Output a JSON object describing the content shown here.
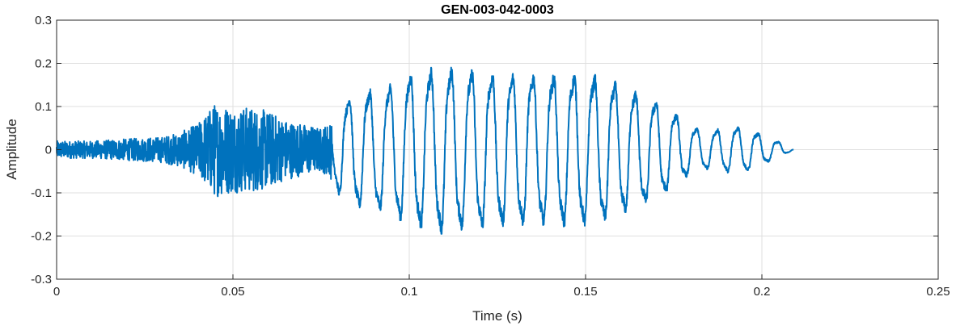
{
  "chart_data": {
    "type": "line",
    "title": "GEN-003-042-0003",
    "xlabel": "Time (s)",
    "ylabel": "Amplitude",
    "xlim": [
      0,
      0.25
    ],
    "ylim": [
      -0.3,
      0.3
    ],
    "xticks": [
      0,
      0.05,
      0.1,
      0.15,
      0.2,
      0.25
    ],
    "xtick_labels": [
      "0",
      "0.05",
      "0.1",
      "0.15",
      "0.2",
      "0.25"
    ],
    "yticks": [
      -0.3,
      -0.2,
      -0.1,
      0,
      0.1,
      0.2,
      0.3
    ],
    "ytick_labels": [
      "-0.3",
      "-0.2",
      "-0.1",
      "0",
      "0.1",
      "0.2",
      "0.3"
    ],
    "grid": true,
    "color": "#0072BD",
    "series": [
      {
        "x": [
          0,
          0.01,
          0.02,
          0.03,
          0.035,
          0.04,
          0.045,
          0.05,
          0.055,
          0.06,
          0.065,
          0.07,
          0.075,
          0.078,
          0.08,
          0.085,
          0.09,
          0.095,
          0.1,
          0.105,
          0.11,
          0.115,
          0.12,
          0.125,
          0.13,
          0.135,
          0.14,
          0.145,
          0.15,
          0.155,
          0.16,
          0.165,
          0.17,
          0.175,
          0.18,
          0.185,
          0.19,
          0.195,
          0.2,
          0.205,
          0.209
        ],
        "envelope": [
          0.02,
          0.02,
          0.025,
          0.03,
          0.04,
          0.06,
          0.11,
          0.1,
          0.1,
          0.09,
          0.07,
          0.06,
          0.05,
          0.07,
          0.12,
          0.15,
          0.16,
          0.17,
          0.2,
          0.21,
          0.22,
          0.21,
          0.21,
          0.2,
          0.2,
          0.2,
          0.2,
          0.2,
          0.2,
          0.19,
          0.17,
          0.15,
          0.13,
          0.1,
          0.06,
          0.05,
          0.06,
          0.06,
          0.04,
          0.02,
          0.0
        ]
      }
    ]
  }
}
